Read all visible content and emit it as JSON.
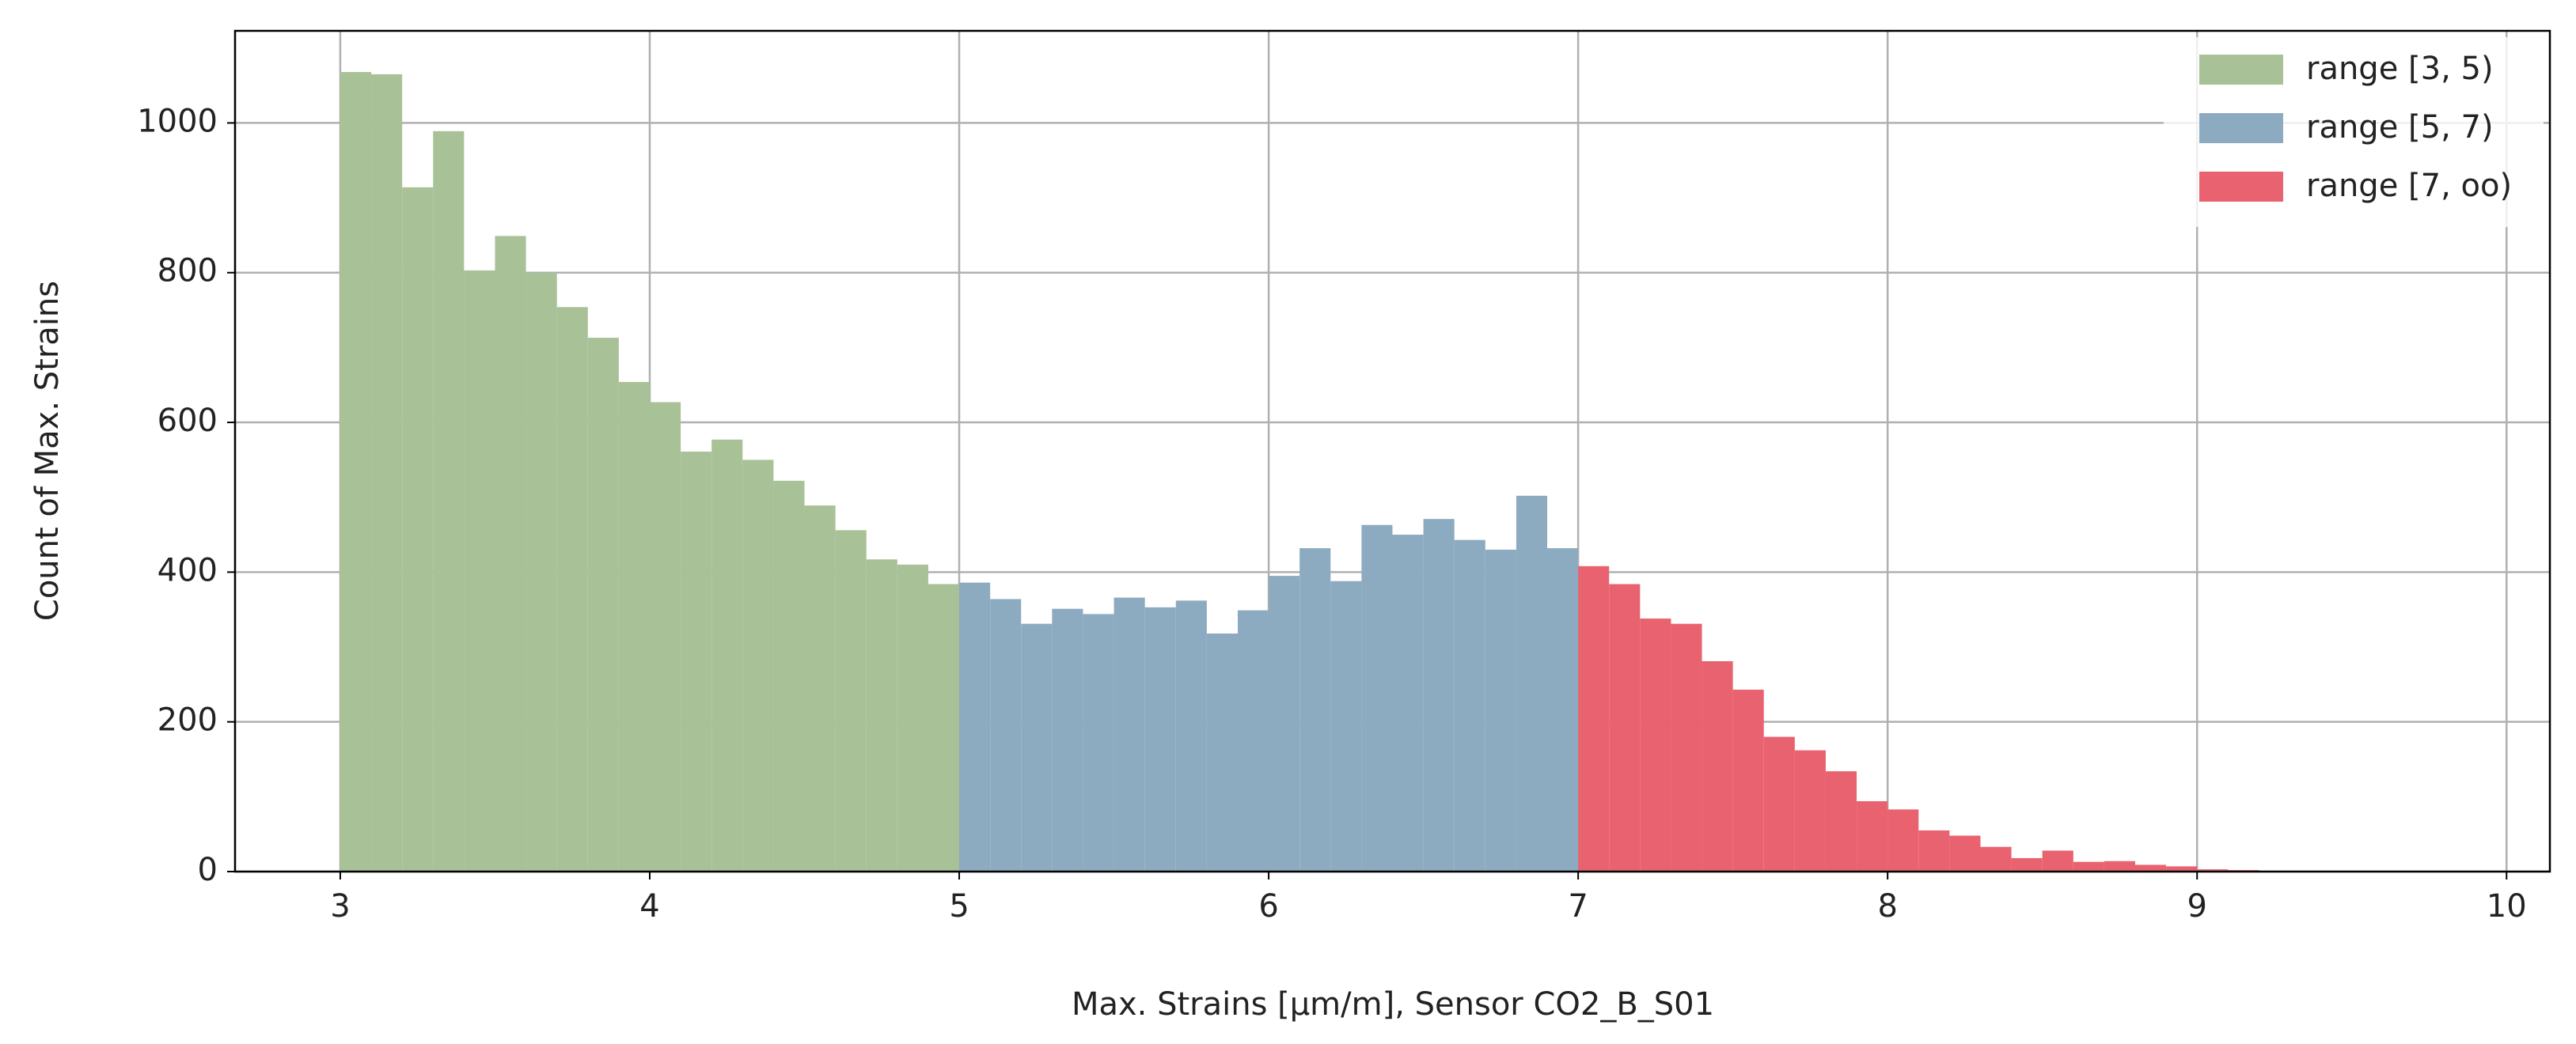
{
  "chart_data": {
    "type": "histogram",
    "xlabel": "Max. Strains [µm/m], Sensor CO2_B_S01",
    "ylabel": "Count of Max. Strains",
    "xlim": [
      2.66,
      10.14
    ],
    "ylim": [
      0,
      1123
    ],
    "xticks": [
      3,
      4,
      5,
      6,
      7,
      8,
      9,
      10
    ],
    "yticks": [
      0,
      200,
      400,
      600,
      800,
      1000
    ],
    "grid": true,
    "legend": "upper right",
    "series": [
      {
        "name": "range [3, 5)",
        "color": "#a8c197",
        "bins": [
          3.0,
          3.1,
          3.2,
          3.3,
          3.4,
          3.5,
          3.6,
          3.7,
          3.8,
          3.9,
          4.0,
          4.1,
          4.2,
          4.3,
          4.4,
          4.5,
          4.6,
          4.7,
          4.8,
          4.9,
          5.0
        ],
        "values": [
          1068,
          1065,
          914,
          989,
          803,
          849,
          800,
          754,
          713,
          654,
          627,
          561,
          577,
          550,
          522,
          489,
          456,
          417,
          410,
          384
        ]
      },
      {
        "name": "range [5, 7)",
        "color": "#8dabc0",
        "bins": [
          5.0,
          5.1,
          5.2,
          5.3,
          5.4,
          5.5,
          5.6,
          5.7,
          5.8,
          5.9,
          6.0,
          6.1,
          6.2,
          6.3,
          6.4,
          6.5,
          6.6,
          6.7,
          6.8,
          6.9,
          7.0
        ],
        "values": [
          386,
          364,
          331,
          351,
          344,
          366,
          353,
          362,
          318,
          349,
          395,
          432,
          388,
          463,
          450,
          471,
          443,
          430,
          502,
          432
        ]
      },
      {
        "name": "range [7, oo)",
        "color": "#e8636f",
        "bins": [
          7.0,
          7.1,
          7.2,
          7.3,
          7.4,
          7.5,
          7.6,
          7.7,
          7.8,
          7.9,
          8.0,
          8.1,
          8.2,
          8.3,
          8.4,
          8.5,
          8.6,
          8.7,
          8.8,
          8.9,
          9.0,
          9.1,
          9.2,
          9.3,
          9.4,
          9.5,
          9.6,
          9.7,
          9.8,
          9.9,
          10.0
        ],
        "values": [
          408,
          384,
          338,
          331,
          281,
          243,
          180,
          162,
          134,
          94,
          83,
          55,
          48,
          33,
          18,
          28,
          13,
          14,
          9,
          7,
          3,
          2,
          1,
          1,
          1,
          0,
          0,
          0,
          0,
          0
        ]
      }
    ]
  }
}
